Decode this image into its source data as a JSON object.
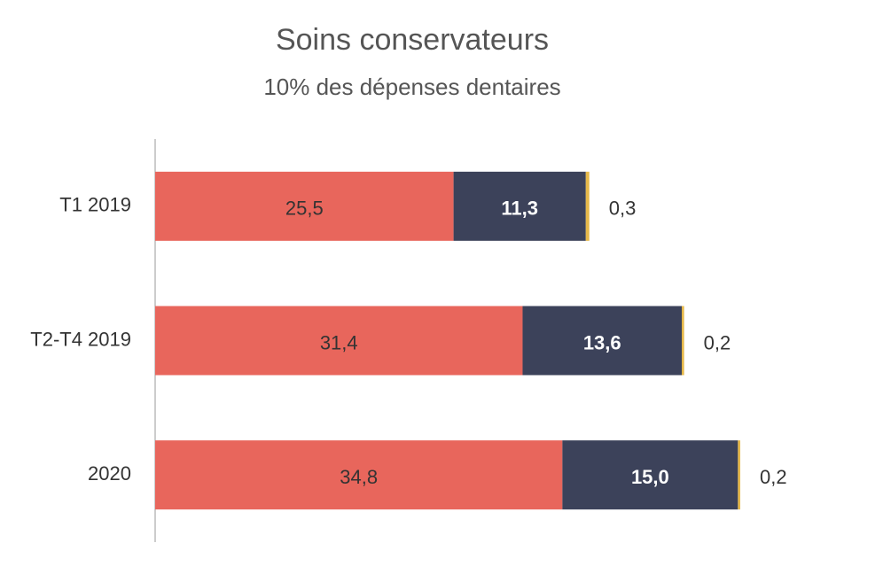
{
  "chart_data": {
    "type": "stacked-bar-horizontal",
    "title": "Soins conservateurs",
    "subtitle": "10% des dépenses dentaires",
    "categories": [
      "T1 2019",
      "T2-T4 2019",
      "2020"
    ],
    "series": [
      {
        "color": "#e8665c",
        "values": [
          25.5,
          31.4,
          34.8
        ],
        "value_labels": [
          "25,5",
          "31,4",
          "34,8"
        ]
      },
      {
        "color": "#3c425a",
        "values": [
          11.3,
          13.6,
          15.0
        ],
        "value_labels": [
          "11,3",
          "13,6",
          "15,0"
        ]
      },
      {
        "color": "#e6b84a",
        "values": [
          0.3,
          0.2,
          0.2
        ],
        "value_labels": [
          "0,3",
          "0,2",
          "0,2"
        ]
      }
    ]
  }
}
